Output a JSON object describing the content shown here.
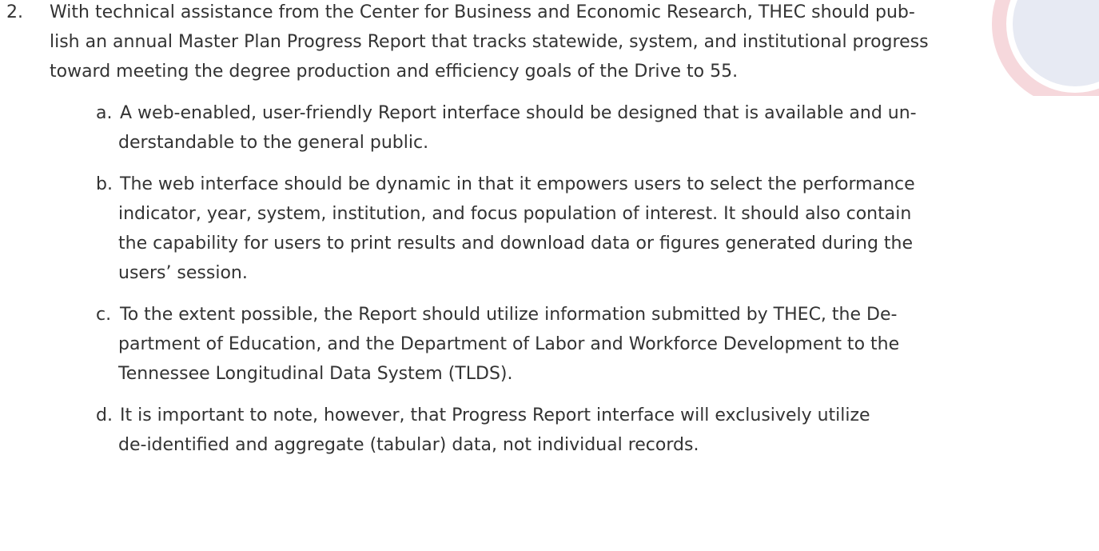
{
  "items": [
    {
      "marker": "2.",
      "lines": [
        "With technical assistance from the Center for Business and Economic Research, THEC should pub-",
        "lish an annual Master Plan Progress Report that tracks statewide, system, and institutional progress",
        "toward meeting the degree production and efficiency goals of the Drive to 55."
      ],
      "subitems": [
        {
          "marker": "a.",
          "lines": [
            "A web-enabled, user-friendly Report interface should be designed that is available and un-",
            "derstandable to the general public."
          ]
        },
        {
          "marker": "b.",
          "lines": [
            "The web interface should be dynamic in that it empowers users to select the performance",
            "indicator, year, system, institution, and focus population of interest. It should also contain",
            "the capability for users to print results and download data or figures generated during the",
            "users’ session."
          ]
        },
        {
          "marker": "c.",
          "lines": [
            "To the extent possible, the Report should utilize information submitted by THEC, the De-",
            "partment of Education, and the Department of Labor and Workforce Development to the",
            "Tennessee Longitudinal Data System (TLDS)."
          ]
        },
        {
          "marker": "d.",
          "lines": [
            "It is important to note, however, that Progress Report interface will exclusively utilize",
            "de-identified and aggregate (tabular) data, not individual records."
          ]
        }
      ]
    }
  ]
}
